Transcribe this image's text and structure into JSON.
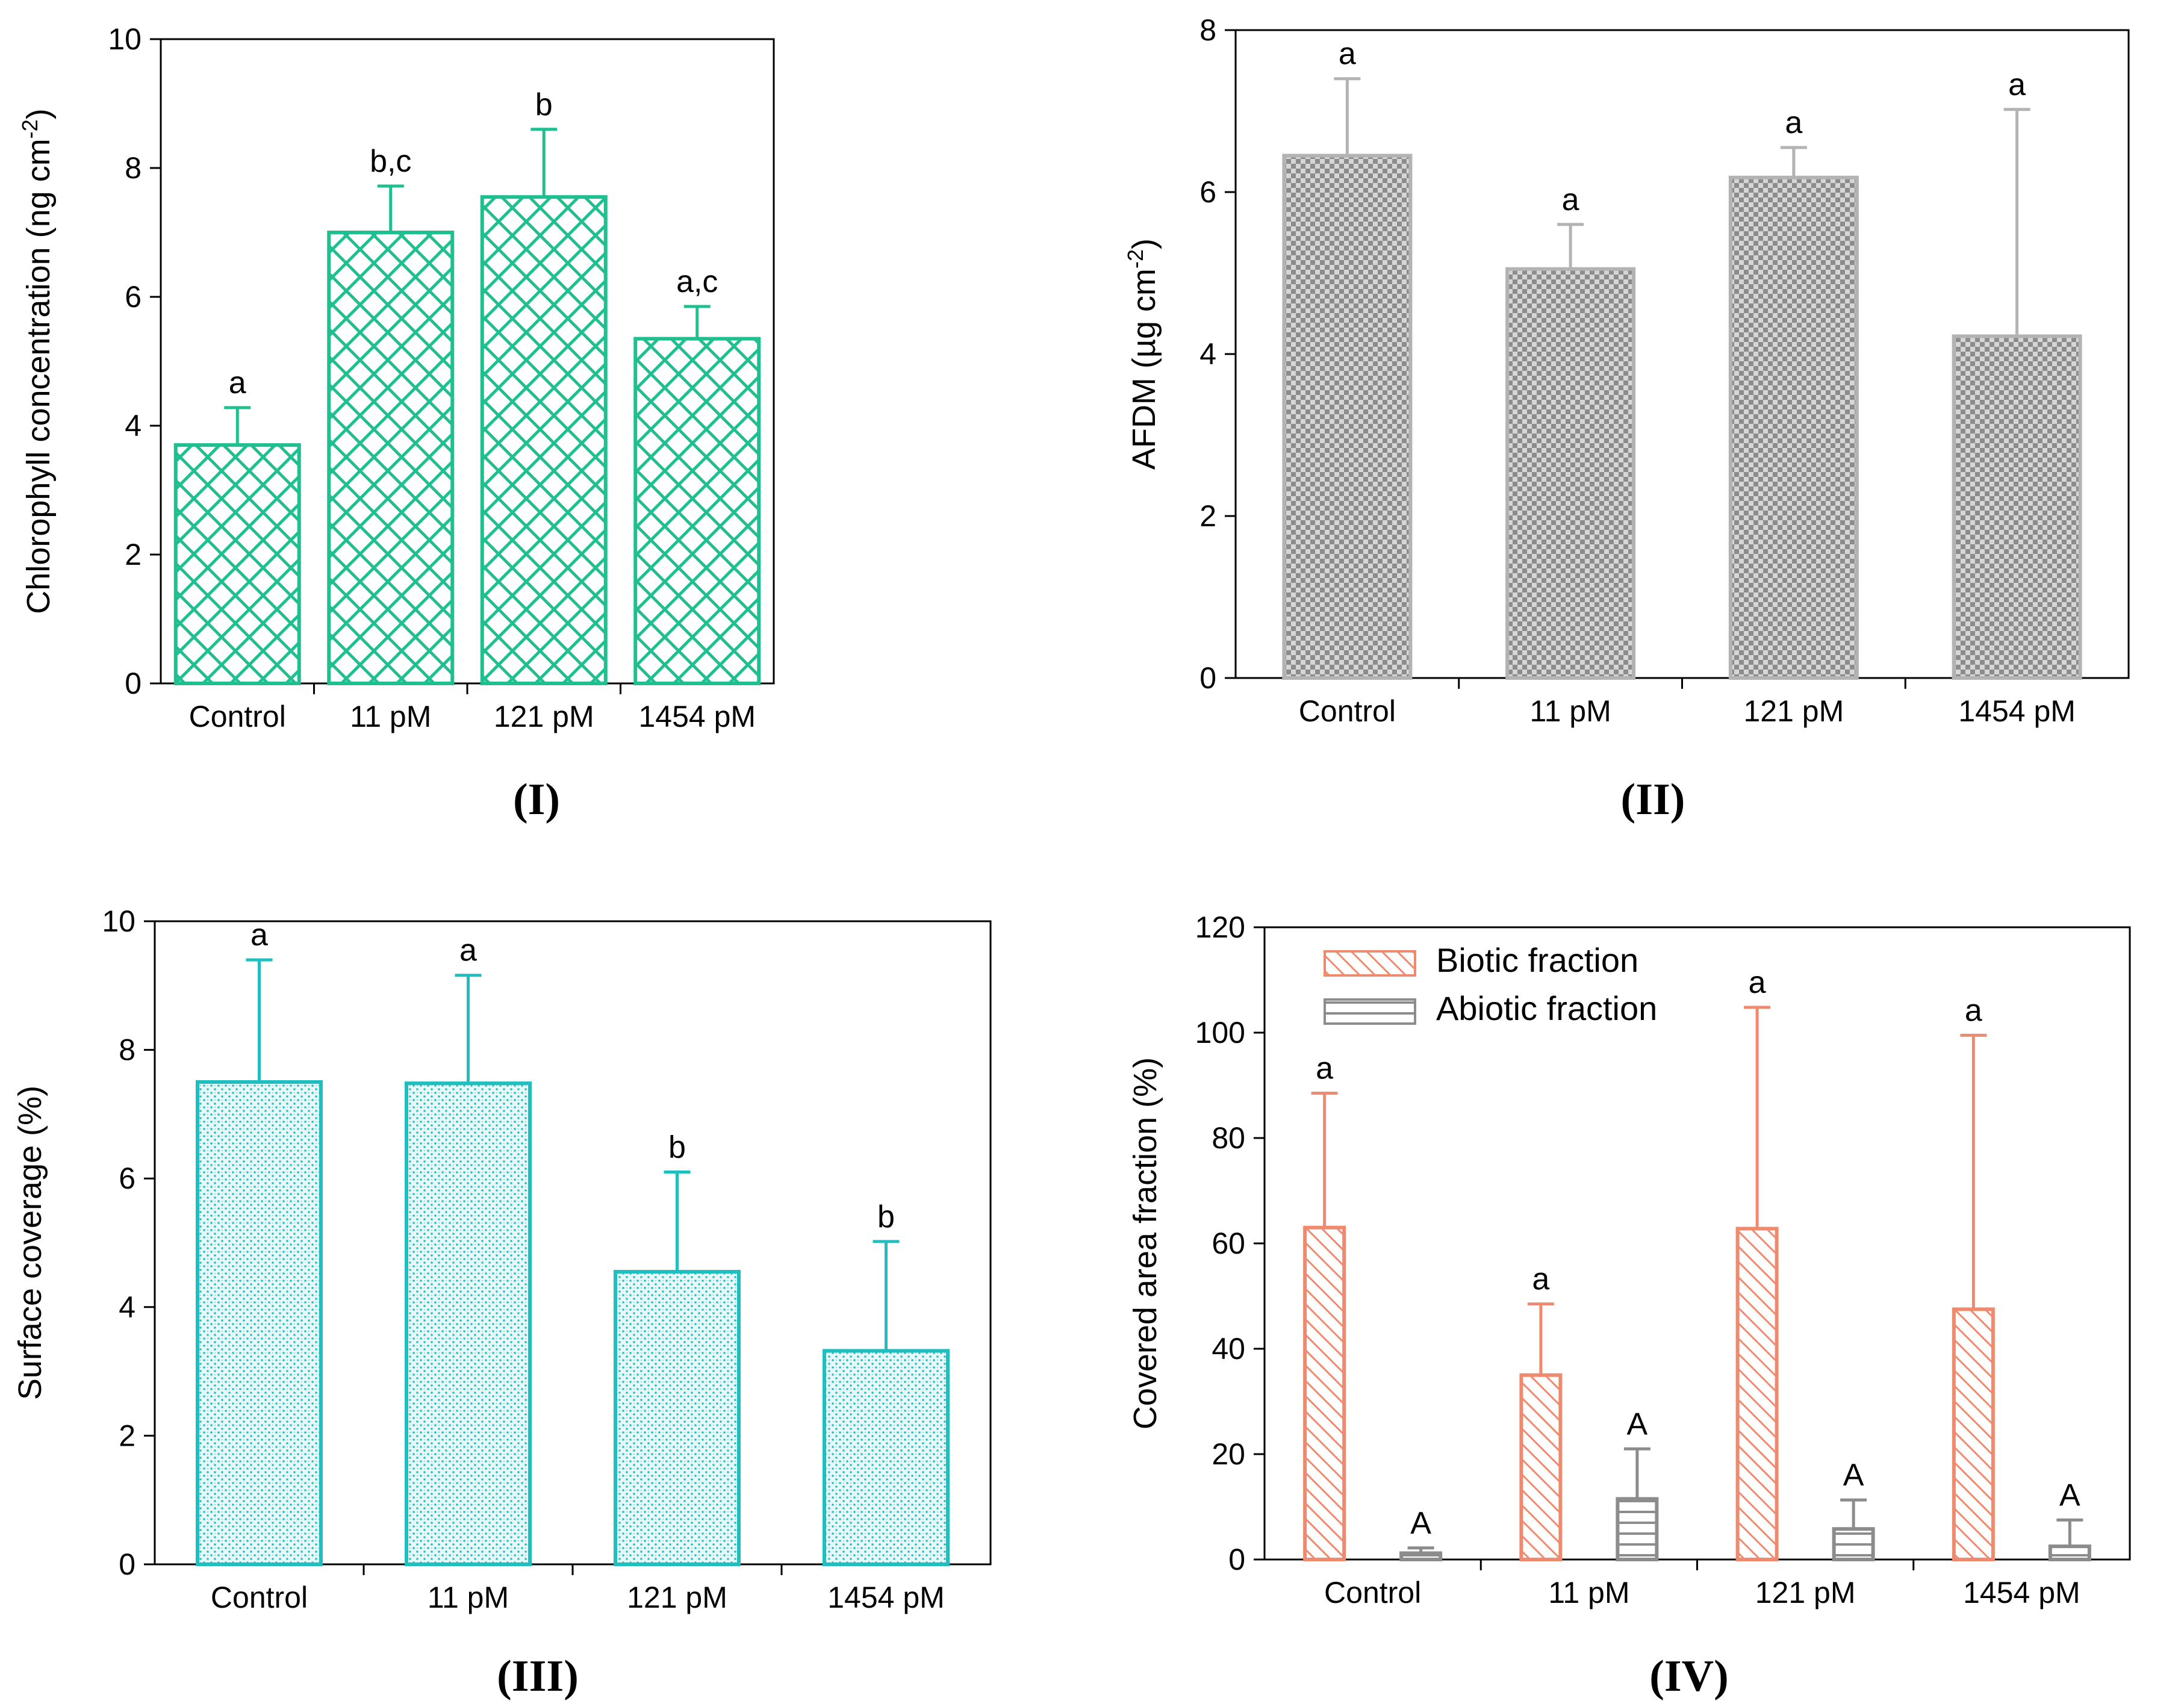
{
  "chart_data": [
    {
      "type": "bar",
      "panel_label": "(I)",
      "ylabel": "Chlorophyll concentration (ng cm-2)",
      "ylabel_main": "Chlorophyll concentration (ng cm",
      "ylabel_sup": "-2",
      "ylabel_tail": ")",
      "categories": [
        "Control",
        "11 pM",
        "121 pM",
        "1454 pM"
      ],
      "values": [
        3.7,
        7.0,
        7.55,
        5.35
      ],
      "errors": [
        0.58,
        0.72,
        1.05,
        0.5
      ],
      "significance": [
        "a",
        "b,c",
        "b",
        "a,c"
      ],
      "ylim": [
        0,
        10
      ],
      "yticks": [
        0,
        2,
        4,
        6,
        8,
        10
      ],
      "pattern": "crosshatch",
      "color": "#1fbf8f"
    },
    {
      "type": "bar",
      "panel_label": "(II)",
      "ylabel": "AFDM (µg cm-2)",
      "ylabel_main": "AFDM (µg cm",
      "ylabel_sup": "-2",
      "ylabel_tail": ")",
      "categories": [
        "Control",
        "11 pM",
        "121 pM",
        "1454 pM"
      ],
      "values": [
        6.45,
        5.05,
        6.18,
        4.22
      ],
      "errors": [
        0.95,
        0.55,
        0.37,
        2.8
      ],
      "significance": [
        "a",
        "a",
        "a",
        "a"
      ],
      "ylim": [
        0,
        8
      ],
      "yticks": [
        0,
        2,
        4,
        6,
        8
      ],
      "pattern": "checker",
      "color": "#b3b3b3"
    },
    {
      "type": "bar",
      "panel_label": "(III)",
      "ylabel": "Surface coverage (%)",
      "ylabel_main": "Surface coverage (%)",
      "ylabel_sup": "",
      "ylabel_tail": "",
      "categories": [
        "Control",
        "11 pM",
        "121 pM",
        "1454 pM"
      ],
      "values": [
        7.5,
        7.48,
        4.55,
        3.32
      ],
      "errors": [
        1.9,
        1.68,
        1.55,
        1.7
      ],
      "significance": [
        "a",
        "a",
        "b",
        "b"
      ],
      "ylim": [
        0,
        10
      ],
      "yticks": [
        0,
        2,
        4,
        6,
        8,
        10
      ],
      "pattern": "stipple",
      "color": "#1fbfbf"
    },
    {
      "type": "grouped-bar",
      "panel_label": "(IV)",
      "ylabel": "Covered area fraction (%)",
      "ylabel_main": "Covered area fraction (%)",
      "ylabel_sup": "",
      "ylabel_tail": "",
      "categories": [
        "Control",
        "11 pM",
        "121 pM",
        "1454 pM"
      ],
      "series": [
        {
          "name": "Biotic fraction",
          "values": [
            63,
            35,
            62.8,
            47.5
          ],
          "errors": [
            25.5,
            13.5,
            42,
            52
          ],
          "significance": [
            "a",
            "a",
            "a",
            "a"
          ],
          "pattern": "diagonal",
          "color": "#f08a6e"
        },
        {
          "name": "Abiotic fraction",
          "values": [
            1.2,
            11.5,
            5.8,
            2.5
          ],
          "errors": [
            1.0,
            9.5,
            5.5,
            5.0
          ],
          "significance": [
            "A",
            "A",
            "A",
            "A"
          ],
          "pattern": "horizontal",
          "color": "#8c8c8c"
        }
      ],
      "ylim": [
        0,
        120
      ],
      "yticks": [
        0,
        20,
        40,
        60,
        80,
        100,
        120
      ],
      "legend": "top-left"
    }
  ]
}
